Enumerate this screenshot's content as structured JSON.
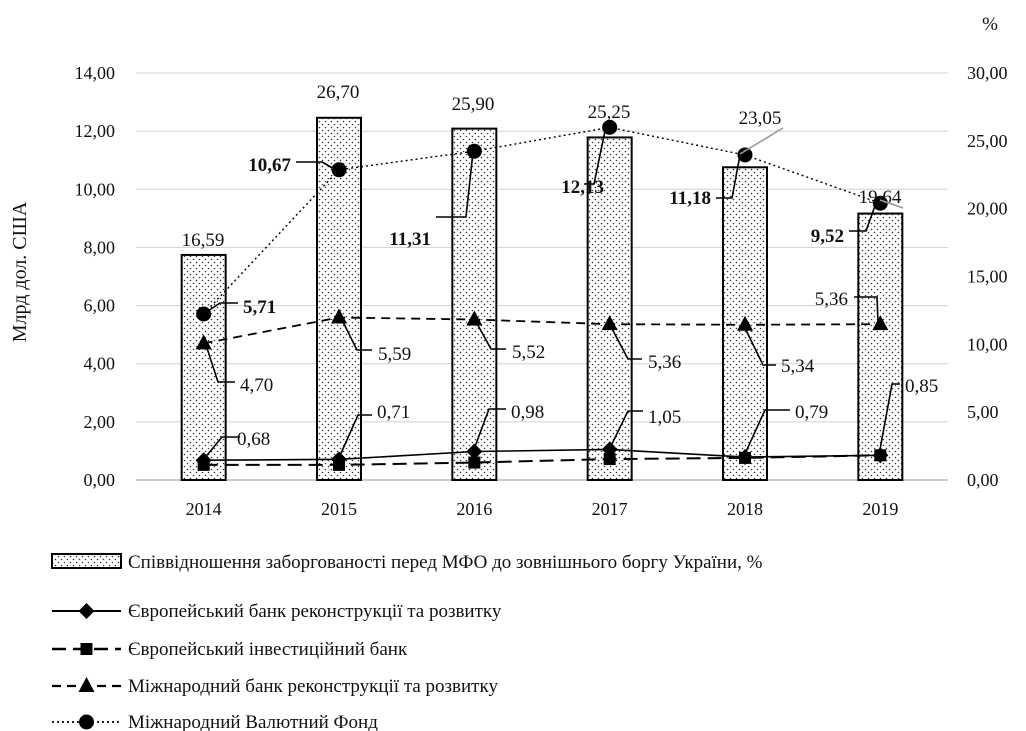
{
  "chart_data": {
    "type": "bar",
    "categories": [
      "2014",
      "2015",
      "2016",
      "2017",
      "2018",
      "2019"
    ],
    "left_axis": {
      "label": "Млрд дол. США",
      "range": [
        0,
        14
      ],
      "ticks": [
        "0,00",
        "2,00",
        "4,00",
        "6,00",
        "8,00",
        "10,00",
        "12,00",
        "14,00"
      ]
    },
    "right_axis": {
      "unit": "%",
      "range": [
        0,
        30
      ],
      "ticks": [
        "0,00",
        "5,00",
        "10,00",
        "15,00",
        "20,00",
        "25,00",
        "30,00"
      ]
    },
    "grid": true,
    "legend_position": "bottom",
    "bars": {
      "name": "Співвідношення заборгованості перед МФО до зовнішнього боргу України, %",
      "axis": "right",
      "values": [
        16.59,
        26.7,
        25.9,
        25.25,
        23.05,
        19.64
      ],
      "labels": [
        "16,59",
        "26,70",
        "25,90",
        "25,25",
        "23,05",
        "19,64"
      ]
    },
    "series": [
      {
        "name": "Європейський банк реконструкції та розвитку",
        "marker": "diamond",
        "line": "solid",
        "axis": "left",
        "values": [
          0.68,
          0.71,
          0.98,
          1.05,
          0.79,
          0.85
        ],
        "labels": [
          "0,68",
          "0,71",
          "0,98",
          "1,05",
          "0,79",
          "0,85"
        ]
      },
      {
        "name": "Європейський інвестиційний банк",
        "marker": "square",
        "line": "longdash",
        "axis": "left",
        "values": [
          0.52,
          0.52,
          0.6,
          0.72,
          0.76,
          0.85
        ],
        "labels": []
      },
      {
        "name": "Міжнародний банк реконструкції та розвитку",
        "marker": "triangle",
        "line": "dashed",
        "axis": "left",
        "values": [
          4.7,
          5.59,
          5.52,
          5.36,
          5.34,
          5.36
        ],
        "labels": [
          "4,70",
          "5,59",
          "5,52",
          "5,36",
          "5,34",
          "5,36"
        ]
      },
      {
        "name": "Міжнародний Валютний Фонд",
        "marker": "circle",
        "line": "dotted",
        "axis": "left",
        "values": [
          5.71,
          10.67,
          11.31,
          12.13,
          11.18,
          9.52
        ],
        "labels": [
          "5,71",
          "10,67",
          "11,31",
          "12,13",
          "11,18",
          "9,52"
        ]
      }
    ]
  }
}
